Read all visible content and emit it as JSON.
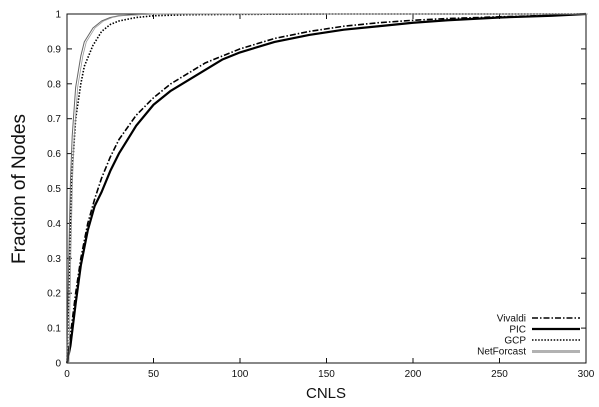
{
  "chart_data": {
    "type": "line",
    "xlabel": "CNLS",
    "ylabel": "Fraction of Nodes",
    "xlim": [
      0,
      300
    ],
    "ylim": [
      0,
      1
    ],
    "xticks": [
      0,
      50,
      100,
      150,
      200,
      250,
      300
    ],
    "yticks": [
      0,
      0.1,
      0.2,
      0.3,
      0.4,
      0.5,
      0.6,
      0.7,
      0.8,
      0.9,
      1
    ],
    "ytick_labels": [
      "0",
      "0.1",
      "0.2",
      "0.3",
      "0.4",
      "0.5",
      "0.6",
      "0.7",
      "0.8",
      "0.9",
      "1"
    ],
    "grid": false,
    "legend_position": "bottom-right",
    "series": [
      {
        "name": "Vivaldi",
        "style": "dash-dot",
        "x": [
          0,
          2,
          5,
          8,
          12,
          16,
          20,
          25,
          30,
          40,
          50,
          60,
          70,
          80,
          90,
          100,
          120,
          140,
          160,
          180,
          200,
          220,
          250,
          280,
          300
        ],
        "y": [
          0,
          0.08,
          0.2,
          0.3,
          0.4,
          0.47,
          0.53,
          0.59,
          0.64,
          0.71,
          0.76,
          0.8,
          0.83,
          0.86,
          0.88,
          0.9,
          0.93,
          0.95,
          0.965,
          0.975,
          0.982,
          0.987,
          0.992,
          0.996,
          1.0
        ]
      },
      {
        "name": "PIC",
        "style": "solid",
        "x": [
          0,
          2,
          5,
          8,
          12,
          16,
          20,
          25,
          30,
          40,
          50,
          60,
          70,
          80,
          90,
          100,
          120,
          140,
          160,
          180,
          200,
          220,
          250,
          280,
          300
        ],
        "y": [
          0,
          0.05,
          0.17,
          0.28,
          0.38,
          0.45,
          0.49,
          0.55,
          0.6,
          0.68,
          0.74,
          0.78,
          0.81,
          0.84,
          0.87,
          0.89,
          0.92,
          0.94,
          0.955,
          0.965,
          0.975,
          0.982,
          0.99,
          0.995,
          1.0
        ]
      },
      {
        "name": "GCP",
        "style": "dotted",
        "x": [
          0,
          1,
          2,
          3,
          5,
          8,
          10,
          15,
          20,
          25,
          30,
          40,
          50,
          70,
          100,
          150,
          200,
          250,
          300
        ],
        "y": [
          0,
          0.2,
          0.4,
          0.55,
          0.7,
          0.8,
          0.85,
          0.91,
          0.95,
          0.97,
          0.98,
          0.99,
          0.995,
          0.998,
          0.999,
          1.0,
          1.0,
          1.0,
          1.0
        ]
      },
      {
        "name": "NetForcast",
        "style": "double-thin",
        "x": [
          0,
          1,
          2,
          3,
          5,
          8,
          10,
          15,
          20,
          25,
          30,
          40,
          50,
          70,
          100,
          150,
          200,
          250,
          300
        ],
        "y": [
          0,
          0.3,
          0.52,
          0.65,
          0.79,
          0.88,
          0.92,
          0.96,
          0.98,
          0.99,
          0.995,
          0.998,
          1.0,
          1.0,
          1.0,
          1.0,
          1.0,
          1.0,
          1.0
        ]
      }
    ]
  }
}
